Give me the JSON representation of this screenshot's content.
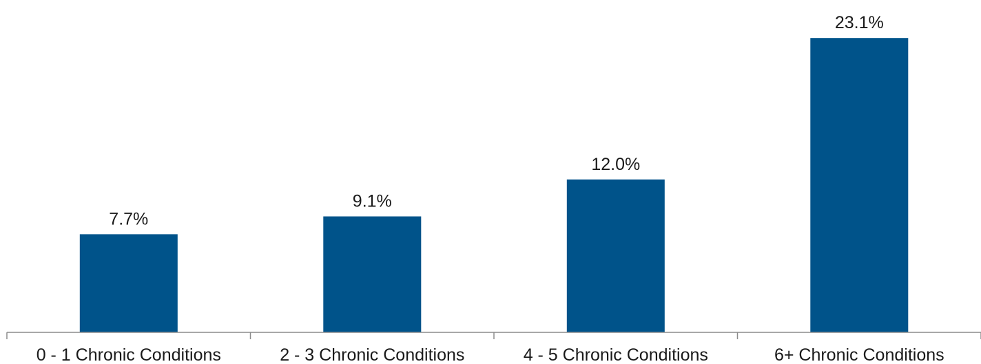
{
  "chart_data": {
    "type": "bar",
    "categories": [
      "0 - 1 Chronic Conditions",
      "2 - 3 Chronic Conditions",
      "4 - 5 Chronic Conditions",
      "6+ Chronic Conditions"
    ],
    "values": [
      7.7,
      9.1,
      12.0,
      23.1
    ],
    "data_labels": [
      "7.7%",
      "9.1%",
      "12.0%",
      "23.1%"
    ],
    "ylim": [
      0,
      25
    ],
    "grid": false,
    "legend": "none",
    "colors": {
      "bar": "#00538A"
    }
  }
}
